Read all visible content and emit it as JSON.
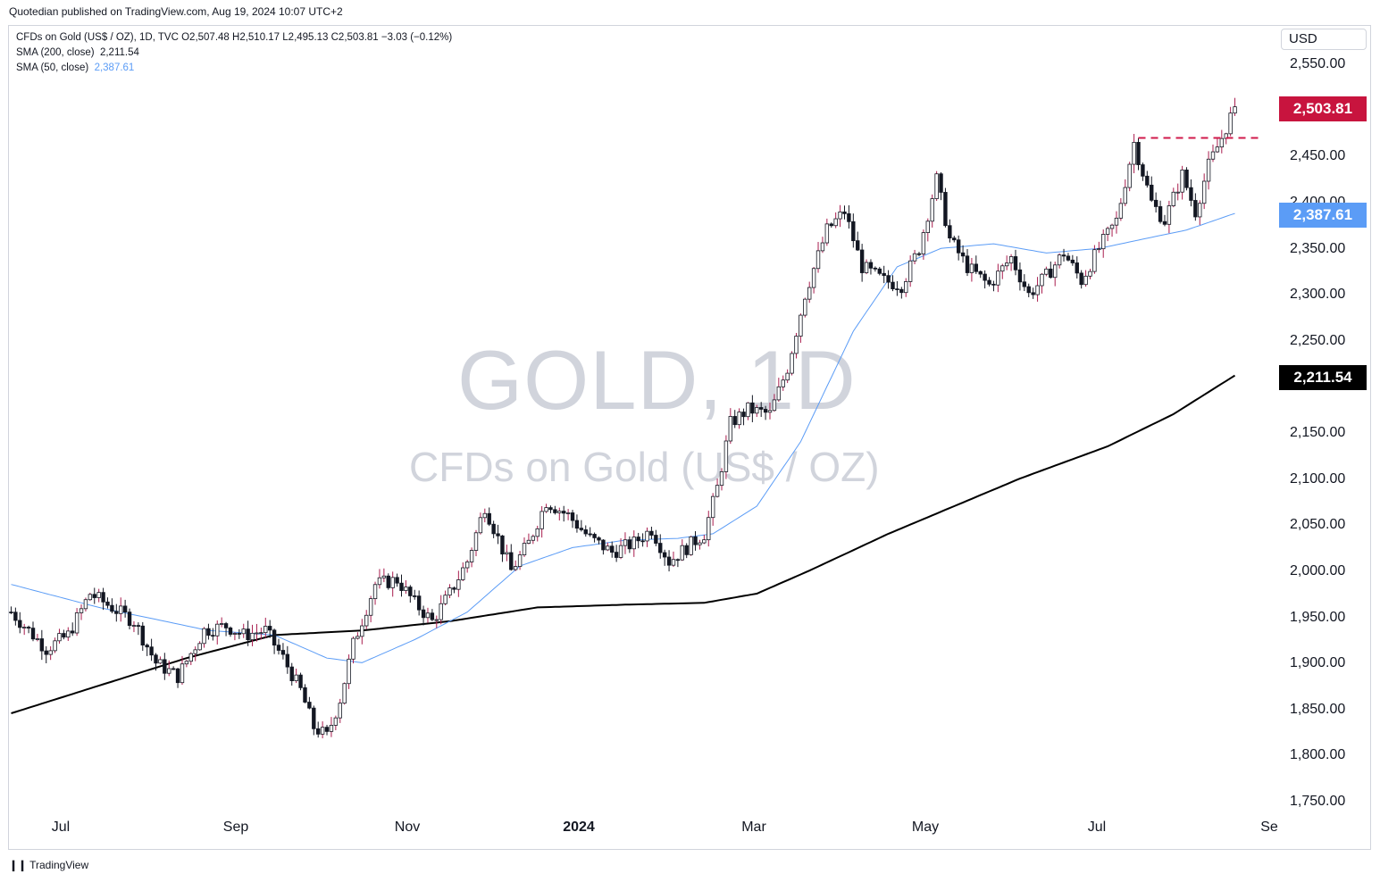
{
  "header": {
    "text": "Quotedian published on TradingView.com, Aug 19, 2024 10:07 UTC+2"
  },
  "legend": {
    "symbol_line": "CFDs on Gold (US$ / OZ), 1D, TVC O2,507.48 H2,510.17 L2,495.13 C2,503.81 −3.03 (−0.12%)",
    "sma200_label": "SMA (200, close)",
    "sma200_value": "2,211.54",
    "sma50_label": "SMA (50, close)",
    "sma50_value": "2,387.61"
  },
  "watermark": {
    "line1": "GOLD, 1D",
    "line2": "CFDs on Gold (US$ / OZ)"
  },
  "footer": {
    "logo": "❙❙",
    "text": "TradingView"
  },
  "colors": {
    "up": "#ffffff",
    "down": "#131722",
    "wick_up": "#a91d4e",
    "sma50": "#5b9cf6",
    "sma200": "#000000",
    "dashed": "#d01a4b",
    "last_price_badge": "#c8143e",
    "sma50_badge": "#5b9cf6",
    "sma200_badge": "#000000"
  },
  "chart_data": {
    "type": "candlestick",
    "title": "CFDs on Gold (US$ / OZ)",
    "timeframe": "1D",
    "currency": "USD",
    "x_ticks": [
      "Jul",
      "Sep",
      "Nov",
      "2024",
      "Mar",
      "May",
      "Jul",
      "Se"
    ],
    "y_ticks": [
      "2,550.00",
      "2,450.00",
      "2,400.00",
      "2,350.00",
      "2,300.00",
      "2,250.00",
      "2,150.00",
      "2,100.00",
      "2,050.00",
      "2,000.00",
      "1,950.00",
      "1,900.00",
      "1,850.00",
      "1,800.00",
      "1,750.00"
    ],
    "ylim": [
      1735,
      2570
    ],
    "last_price": {
      "label": "2,503.81",
      "value": 2503.81
    },
    "sma50": {
      "label": "2,387.61",
      "value": 2387.61
    },
    "sma200": {
      "label": "2,211.54",
      "value": 2211.54
    },
    "ohlc_last": {
      "open": 2507.48,
      "high": 2510.17,
      "low": 2495.13,
      "close": 2503.81,
      "change": -3.03
    },
    "resistance_level": 2470,
    "price_path": [
      [
        0,
        1955
      ],
      [
        8,
        1915
      ],
      [
        13,
        1930
      ],
      [
        18,
        1975
      ],
      [
        23,
        1960
      ],
      [
        28,
        1945
      ],
      [
        33,
        1900
      ],
      [
        38,
        1885
      ],
      [
        44,
        1935
      ],
      [
        49,
        1940
      ],
      [
        53,
        1930
      ],
      [
        58,
        1935
      ],
      [
        62,
        1905
      ],
      [
        66,
        1870
      ],
      [
        69,
        1830
      ],
      [
        72,
        1820
      ],
      [
        75,
        1860
      ],
      [
        78,
        1920
      ],
      [
        83,
        1985
      ],
      [
        88,
        1990
      ],
      [
        92,
        1965
      ],
      [
        96,
        1945
      ],
      [
        100,
        1975
      ],
      [
        104,
        2010
      ],
      [
        108,
        2070
      ],
      [
        111,
        2035
      ],
      [
        114,
        2000
      ],
      [
        118,
        2030
      ],
      [
        122,
        2075
      ],
      [
        127,
        2060
      ],
      [
        132,
        2035
      ],
      [
        137,
        2020
      ],
      [
        142,
        2030
      ],
      [
        146,
        2045
      ],
      [
        150,
        2010
      ],
      [
        154,
        2025
      ],
      [
        158,
        2040
      ],
      [
        161,
        2090
      ],
      [
        164,
        2160
      ],
      [
        168,
        2175
      ],
      [
        173,
        2170
      ],
      [
        177,
        2220
      ],
      [
        181,
        2300
      ],
      [
        186,
        2370
      ],
      [
        190,
        2390
      ],
      [
        194,
        2330
      ],
      [
        199,
        2315
      ],
      [
        203,
        2310
      ],
      [
        207,
        2350
      ],
      [
        211,
        2425
      ],
      [
        214,
        2360
      ],
      [
        218,
        2330
      ],
      [
        223,
        2310
      ],
      [
        228,
        2340
      ],
      [
        232,
        2300
      ],
      [
        236,
        2320
      ],
      [
        240,
        2345
      ],
      [
        244,
        2315
      ],
      [
        248,
        2350
      ],
      [
        252,
        2380
      ],
      [
        256,
        2465
      ],
      [
        260,
        2400
      ],
      [
        263,
        2380
      ],
      [
        267,
        2430
      ],
      [
        270,
        2390
      ],
      [
        273,
        2440
      ],
      [
        276,
        2470
      ],
      [
        279,
        2504
      ]
    ],
    "sma50_path": [
      [
        0,
        1985
      ],
      [
        20,
        1960
      ],
      [
        45,
        1935
      ],
      [
        60,
        1930
      ],
      [
        72,
        1905
      ],
      [
        80,
        1900
      ],
      [
        92,
        1925
      ],
      [
        104,
        1955
      ],
      [
        116,
        2005
      ],
      [
        128,
        2025
      ],
      [
        140,
        2033
      ],
      [
        152,
        2035
      ],
      [
        160,
        2040
      ],
      [
        170,
        2070
      ],
      [
        180,
        2140
      ],
      [
        192,
        2260
      ],
      [
        202,
        2330
      ],
      [
        212,
        2350
      ],
      [
        224,
        2355
      ],
      [
        236,
        2345
      ],
      [
        248,
        2350
      ],
      [
        258,
        2360
      ],
      [
        268,
        2370
      ],
      [
        279,
        2388
      ]
    ],
    "sma200_path": [
      [
        0,
        1845
      ],
      [
        20,
        1875
      ],
      [
        40,
        1905
      ],
      [
        60,
        1930
      ],
      [
        80,
        1935
      ],
      [
        100,
        1945
      ],
      [
        120,
        1960
      ],
      [
        140,
        1963
      ],
      [
        158,
        1965
      ],
      [
        170,
        1975
      ],
      [
        182,
        2000
      ],
      [
        200,
        2040
      ],
      [
        215,
        2070
      ],
      [
        230,
        2100
      ],
      [
        250,
        2135
      ],
      [
        265,
        2170
      ],
      [
        279,
        2212
      ]
    ]
  }
}
